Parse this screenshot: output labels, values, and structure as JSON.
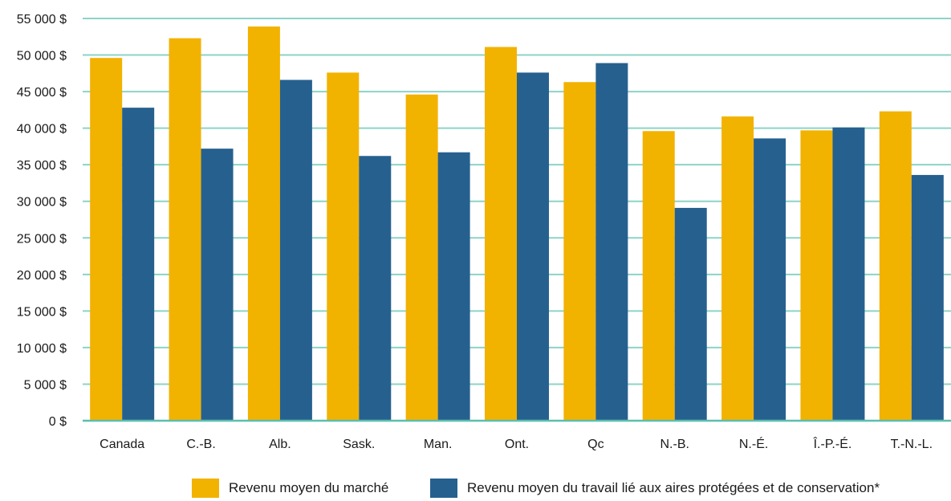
{
  "chart_data": {
    "type": "bar",
    "categories": [
      "Canada",
      "C.-B.",
      "Alb.",
      "Sask.",
      "Man.",
      "Ont.",
      "Qc",
      "N.-B.",
      "N.-É.",
      "Î.-P.-É.",
      "T.-N.-L."
    ],
    "series": [
      {
        "name": "Revenu moyen du marché",
        "color": "#f2b200",
        "values": [
          49600,
          52300,
          53900,
          47600,
          44600,
          51100,
          46300,
          39600,
          41600,
          39700,
          42300
        ]
      },
      {
        "name": "Revenu moyen du travail lié aux aires protégées et de conservation*",
        "color": "#26608f",
        "values": [
          42800,
          37200,
          46600,
          36200,
          36700,
          47600,
          48900,
          29100,
          38600,
          40100,
          33600
        ]
      }
    ],
    "yticks": [
      "0 $",
      "5 000 $",
      "10 000 $",
      "15 000 $",
      "20 000 $",
      "25 000 $",
      "30 000 $",
      "35 000 $",
      "40 000 $",
      "45 000 $",
      "50 000 $",
      "55 000 $"
    ],
    "ylim": [
      0,
      55000
    ],
    "ytick_step": 5000,
    "grid": true,
    "gridline_color": "#8dd3c7",
    "axis_color": "#5bbfae",
    "legend_position": "bottom"
  }
}
